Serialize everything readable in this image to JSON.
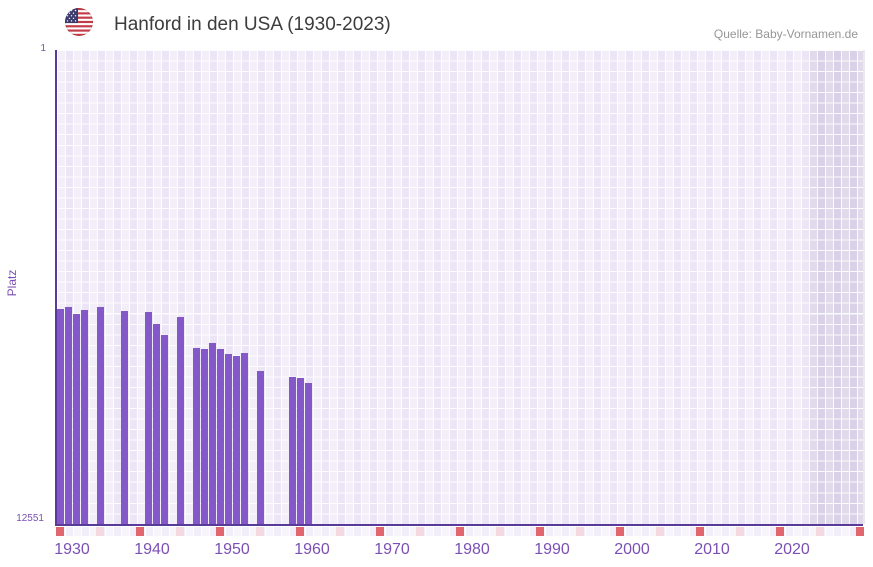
{
  "header": {
    "title": "Hanford in den USA (1930-2023)",
    "source": "Quelle: Baby-Vornamen.de",
    "flag_icon": "us-flag-icon"
  },
  "chart_data": {
    "type": "bar",
    "title": "Hanford in den USA (1930-2023)",
    "ylabel": "Platz",
    "y_axis": {
      "top_label": "1",
      "bottom_label": "12551",
      "min": 1,
      "max": 12551,
      "scale": "log",
      "reversed": true
    },
    "x_axis": {
      "start_year": 1930,
      "end_year": 2030,
      "data_end_year": 2023,
      "labeled_decades": [
        1930,
        1940,
        1950,
        1960,
        1970,
        1980,
        1990,
        2000,
        2010,
        2020
      ],
      "major_tick_years": [
        1930,
        1940,
        1950,
        1960,
        1970,
        1980,
        1990,
        2000,
        2010,
        2020,
        2030
      ],
      "minor_tick_years": [
        1935,
        1945,
        1955,
        1965,
        1975,
        1985,
        1995,
        2005,
        2015,
        2025
      ]
    },
    "future_zone": {
      "from_year": 2024,
      "to_year": 2030
    },
    "series": [
      {
        "year": 1930,
        "rank": 174
      },
      {
        "year": 1931,
        "rank": 167
      },
      {
        "year": 1932,
        "rank": 192
      },
      {
        "year": 1933,
        "rank": 177
      },
      {
        "year": 1935,
        "rank": 168
      },
      {
        "year": 1938,
        "rank": 181
      },
      {
        "year": 1941,
        "rank": 184
      },
      {
        "year": 1942,
        "rank": 234
      },
      {
        "year": 1943,
        "rank": 292
      },
      {
        "year": 1945,
        "rank": 204
      },
      {
        "year": 1947,
        "rank": 378
      },
      {
        "year": 1948,
        "rank": 385
      },
      {
        "year": 1949,
        "rank": 342
      },
      {
        "year": 1950,
        "rank": 385
      },
      {
        "year": 1951,
        "rank": 425
      },
      {
        "year": 1952,
        "rank": 443
      },
      {
        "year": 1953,
        "rank": 417
      },
      {
        "year": 1955,
        "rank": 591
      },
      {
        "year": 1959,
        "rank": 672
      },
      {
        "year": 1960,
        "rank": 686
      },
      {
        "year": 1961,
        "rank": 758
      }
    ]
  },
  "colors": {
    "bar": "#8458c8",
    "axis_line": "#583a99",
    "major_tick": "#e0676e",
    "minor_tick": "#f5d9e0",
    "axis_text": "#7b50b4",
    "title_text": "#3d3d3d",
    "source_text": "#969696"
  }
}
